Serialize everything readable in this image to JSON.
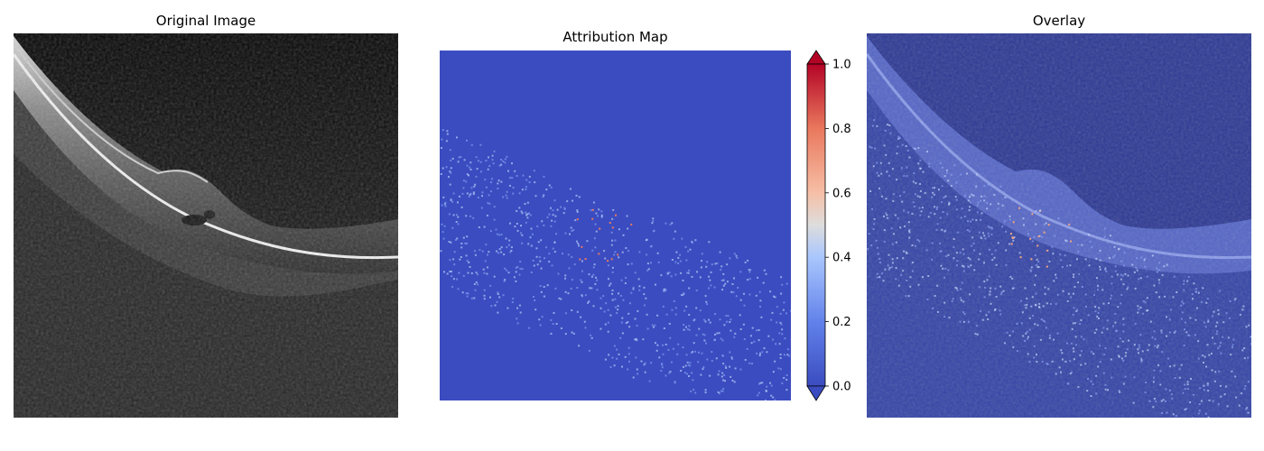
{
  "panels": {
    "original": {
      "title": "Original Image"
    },
    "attribution": {
      "title": "Attribution Map"
    },
    "overlay": {
      "title": "Overlay"
    }
  },
  "chart_data": [
    {
      "type": "image",
      "title": "Original Image",
      "description_values": {
        "colormap": "gray",
        "axes": "off"
      }
    },
    {
      "type": "heatmap",
      "title": "Attribution Map",
      "colormap": "coolwarm",
      "colorbar": {
        "vmin": 0.0,
        "vmax": 1.0,
        "ticks": [
          0.0,
          0.2,
          0.4,
          0.6,
          0.8,
          1.0
        ],
        "tick_labels": [
          "0.0",
          "0.2",
          "0.4",
          "0.6",
          "0.8",
          "1.0"
        ],
        "extend": "both"
      },
      "axes": "off"
    },
    {
      "type": "image",
      "title": "Overlay",
      "description_values": {
        "colormap": "coolwarm",
        "axes": "off"
      }
    }
  ],
  "colors": {
    "cmap_low": "#3b4cc0",
    "cmap_mid": "#dddddd",
    "cmap_high": "#b40426"
  }
}
